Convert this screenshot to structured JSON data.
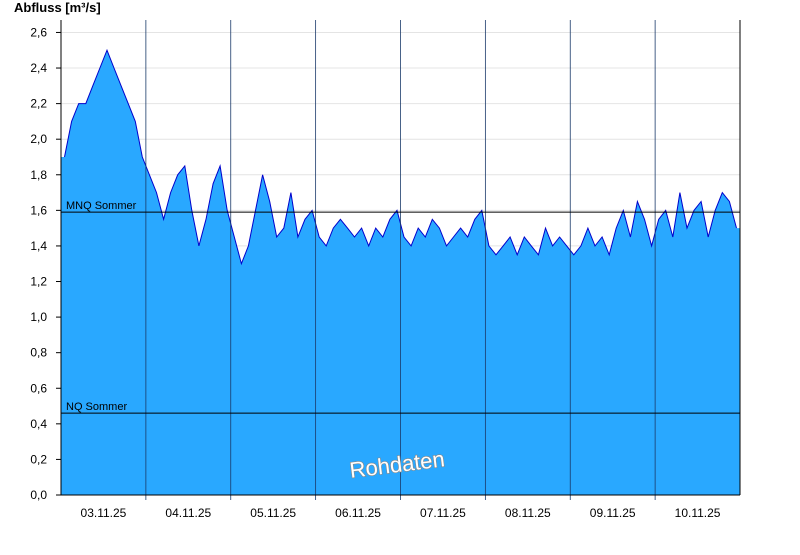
{
  "chart_data": {
    "type": "area",
    "y_label": "Abfluss [m³/s]",
    "watermark": "Rohdaten",
    "color": "#29a8ff",
    "line_color": "#0000cc",
    "categories": [
      "03.11.25",
      "04.11.25",
      "05.11.25",
      "06.11.25",
      "07.11.25",
      "08.11.25",
      "09.11.25",
      "10.11.25"
    ],
    "values": [
      [
        1.9,
        2.1,
        2.2,
        2.2,
        2.3,
        2.4,
        2.5,
        2.4,
        2.3,
        2.2,
        2.1,
        1.9
      ],
      [
        1.8,
        1.7,
        1.55,
        1.7,
        1.8,
        1.85,
        1.6,
        1.4,
        1.55,
        1.75,
        1.85,
        1.6
      ],
      [
        1.45,
        1.3,
        1.4,
        1.6,
        1.8,
        1.65,
        1.45,
        1.5,
        1.7,
        1.45,
        1.55,
        1.6
      ],
      [
        1.45,
        1.4,
        1.5,
        1.55,
        1.5,
        1.45,
        1.5,
        1.4,
        1.5,
        1.45,
        1.55,
        1.6
      ],
      [
        1.45,
        1.4,
        1.5,
        1.45,
        1.55,
        1.5,
        1.4,
        1.45,
        1.5,
        1.45,
        1.55,
        1.6
      ],
      [
        1.4,
        1.35,
        1.4,
        1.45,
        1.35,
        1.45,
        1.4,
        1.35,
        1.5,
        1.4,
        1.45,
        1.4
      ],
      [
        1.35,
        1.4,
        1.5,
        1.4,
        1.45,
        1.35,
        1.5,
        1.6,
        1.45,
        1.65,
        1.55,
        1.4
      ],
      [
        1.55,
        1.6,
        1.45,
        1.7,
        1.5,
        1.6,
        1.65,
        1.45,
        1.6,
        1.7,
        1.65,
        1.5
      ]
    ],
    "reference_lines": [
      {
        "label": "MNQ Sommer",
        "value": 1.59
      },
      {
        "label": "NQ Sommer",
        "value": 0.46
      }
    ],
    "ylim": [
      0,
      2.67
    ],
    "yticks": [
      {
        "value": 0,
        "label": "0,0"
      },
      {
        "value": 0.2,
        "label": "0,2"
      },
      {
        "value": 0.4,
        "label": "0,4"
      },
      {
        "value": 0.6,
        "label": "0,6"
      },
      {
        "value": 0.8,
        "label": "0,8"
      },
      {
        "value": 1.0,
        "label": "1,0"
      },
      {
        "value": 1.2,
        "label": "1,2"
      },
      {
        "value": 1.4,
        "label": "1,4"
      },
      {
        "value": 1.6,
        "label": "1,6"
      },
      {
        "value": 1.8,
        "label": "1,8"
      },
      {
        "value": 2.0,
        "label": "2,0"
      },
      {
        "value": 2.2,
        "label": "2,2"
      },
      {
        "value": 2.4,
        "label": "2,4"
      },
      {
        "value": 2.6,
        "label": "2,6"
      }
    ],
    "grid": true
  }
}
